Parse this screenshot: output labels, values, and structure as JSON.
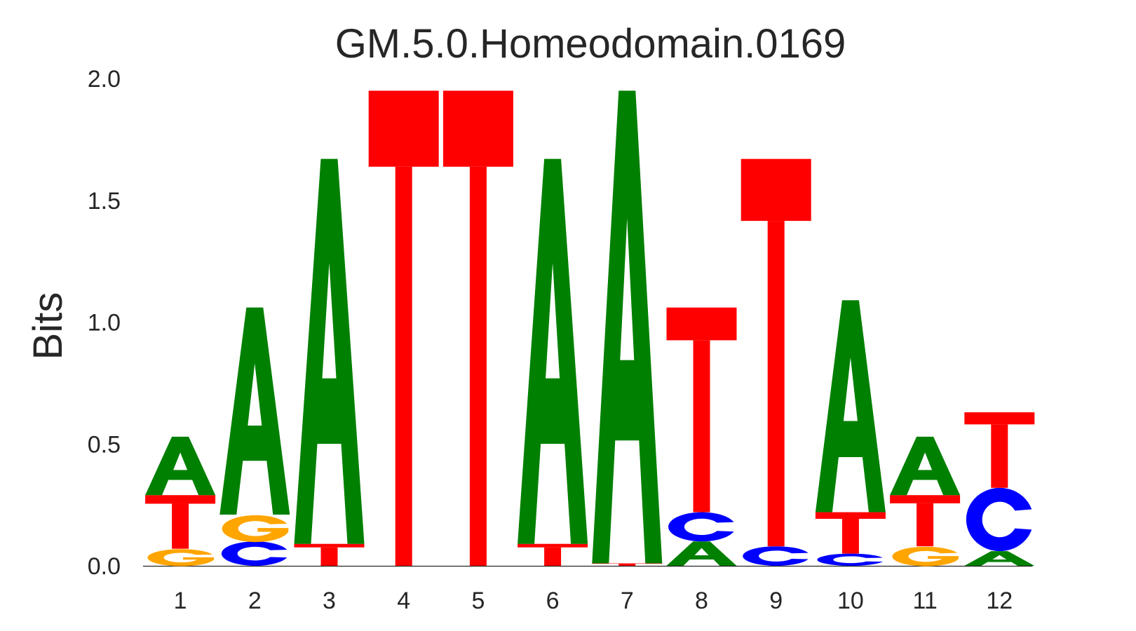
{
  "chart_data": {
    "type": "sequence-logo",
    "title": "GM.5.0.Homeodomain.0169",
    "xlabel": "",
    "ylabel": "Bits",
    "ylim": [
      0,
      2.0
    ],
    "yticks": [
      "0.0",
      "0.5",
      "1.0",
      "1.5",
      "2.0"
    ],
    "positions": [
      "1",
      "2",
      "3",
      "4",
      "5",
      "6",
      "7",
      "8",
      "9",
      "10",
      "11",
      "12"
    ],
    "grid": false,
    "colors": {
      "A": "#008000",
      "C": "#0000ff",
      "G": "#ffa500",
      "T": "#ff0000"
    },
    "stacks": [
      [
        {
          "letter": "G",
          "bits": 0.07
        },
        {
          "letter": "T",
          "bits": 0.22
        },
        {
          "letter": "A",
          "bits": 0.24
        }
      ],
      [
        {
          "letter": "C",
          "bits": 0.1
        },
        {
          "letter": "G",
          "bits": 0.11
        },
        {
          "letter": "A",
          "bits": 0.85
        }
      ],
      [
        {
          "letter": "T",
          "bits": 0.09
        },
        {
          "letter": "A",
          "bits": 1.58
        }
      ],
      [
        {
          "letter": "T",
          "bits": 1.95
        }
      ],
      [
        {
          "letter": "T",
          "bits": 1.95
        }
      ],
      [
        {
          "letter": "T",
          "bits": 0.09
        },
        {
          "letter": "A",
          "bits": 1.58
        }
      ],
      [
        {
          "letter": "T",
          "bits": 0.01
        },
        {
          "letter": "A",
          "bits": 1.94
        }
      ],
      [
        {
          "letter": "A",
          "bits": 0.1
        },
        {
          "letter": "C",
          "bits": 0.12
        },
        {
          "letter": "T",
          "bits": 0.84
        }
      ],
      [
        {
          "letter": "C",
          "bits": 0.08
        },
        {
          "letter": "T",
          "bits": 1.59
        }
      ],
      [
        {
          "letter": "C",
          "bits": 0.05
        },
        {
          "letter": "T",
          "bits": 0.17
        },
        {
          "letter": "A",
          "bits": 0.87
        }
      ],
      [
        {
          "letter": "G",
          "bits": 0.08
        },
        {
          "letter": "T",
          "bits": 0.21
        },
        {
          "letter": "A",
          "bits": 0.24
        }
      ],
      [
        {
          "letter": "A",
          "bits": 0.06
        },
        {
          "letter": "C",
          "bits": 0.26
        },
        {
          "letter": "T",
          "bits": 0.31
        }
      ]
    ]
  }
}
